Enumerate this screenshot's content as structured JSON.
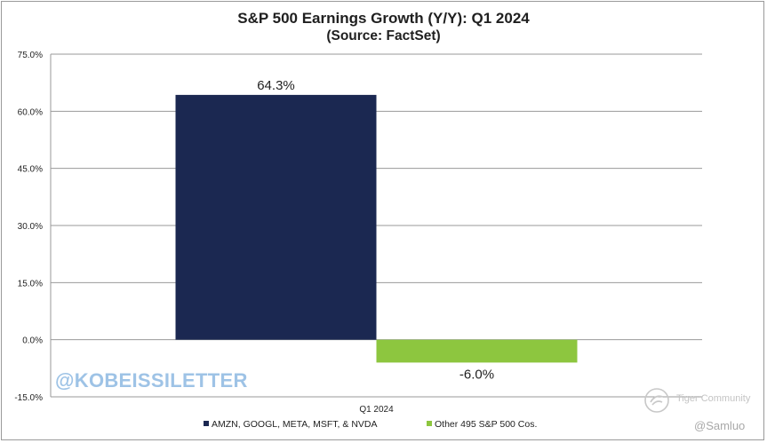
{
  "chart_data": {
    "type": "bar",
    "title": "S&P 500 Earnings Growth (Y/Y): Q1 2024",
    "subtitle": "(Source: FactSet)",
    "categories": [
      "Q1 2024"
    ],
    "series": [
      {
        "name": "AMZN, GOOGL, META, MSFT, & NVDA",
        "values": [
          64.3
        ],
        "color": "#1b2851",
        "label": "64.3%"
      },
      {
        "name": "Other 495 S&P 500 Cos.",
        "values": [
          -6.0
        ],
        "color": "#8dc63f",
        "label": "-6.0%"
      }
    ],
    "ylim": [
      -15,
      75
    ],
    "yticks": [
      "75.0%",
      "60.0%",
      "45.0%",
      "30.0%",
      "15.0%",
      "0.0%",
      "-15.0%"
    ],
    "ytick_values": [
      75,
      60,
      45,
      30,
      15,
      0,
      -15
    ],
    "grid": true,
    "legend": "bottom"
  },
  "watermark": "@KOBEISSILETTER",
  "credits": {
    "community": "Tiger Community",
    "user": "@Samluo"
  }
}
